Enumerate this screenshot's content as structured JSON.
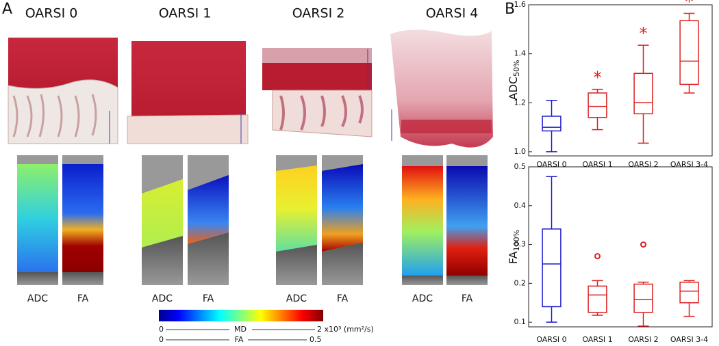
{
  "panel_a": {
    "letter": "A",
    "titles": [
      "OARSI 0",
      "OARSI 1",
      "OARSI 2",
      "OARSI 4"
    ],
    "map_labels": [
      [
        "ADC",
        "FA"
      ],
      [
        "ADC",
        "FA"
      ],
      [
        "ADC",
        "FA"
      ],
      [
        "ADC",
        "FA"
      ]
    ],
    "colorbar": {
      "md_min": "0",
      "md_name": "MD",
      "md_max": "2 x10³ (mm²/s)",
      "fa_min": "0",
      "fa_name": "FA",
      "fa_max": "0.5"
    }
  },
  "panel_b": {
    "letter": "B"
  },
  "chart_data": [
    {
      "type": "box",
      "ylabel": "ADC",
      "ylabel_sub": "50%",
      "categories": [
        "OARSI 0",
        "OARSI 1",
        "OARSI 2",
        "OARSI 3-4"
      ],
      "colors": [
        "#1c1ccc",
        "#dd2020",
        "#dd2020",
        "#dd2020"
      ],
      "min": [
        1.0,
        1.09,
        1.035,
        1.24
      ],
      "q1": [
        1.085,
        1.14,
        1.155,
        1.275
      ],
      "median": [
        1.1,
        1.185,
        1.2,
        1.37
      ],
      "q3": [
        1.145,
        1.24,
        1.32,
        1.535
      ],
      "max": [
        1.21,
        1.255,
        1.435,
        1.565
      ],
      "outliers": [
        null,
        null,
        null,
        null
      ],
      "significance": [
        null,
        "*",
        "*",
        "*"
      ],
      "ylim": [
        0.983,
        1.6
      ],
      "yticks": [
        {
          "value": 1,
          "label": "1.0"
        },
        1.2,
        1.4,
        1.6
      ]
    },
    {
      "type": "box",
      "ylabel": "FA",
      "ylabel_sub": "100%",
      "categories": [
        "OARSI 0",
        "OARSI 1",
        "OARSI 2",
        "OARSI 3-4"
      ],
      "colors": [
        "#1c1ccc",
        "#dd2020",
        "#dd2020",
        "#dd2020"
      ],
      "min": [
        0.1,
        0.118,
        0.09,
        0.115
      ],
      "q1": [
        0.14,
        0.125,
        0.125,
        0.15
      ],
      "median": [
        0.25,
        0.17,
        0.158,
        0.18
      ],
      "q3": [
        0.34,
        0.193,
        0.198,
        0.203
      ],
      "max": [
        0.475,
        0.207,
        0.203,
        0.207
      ],
      "outliers": [
        null,
        0.27,
        0.3,
        null
      ],
      "significance": [
        null,
        null,
        null,
        null
      ],
      "ylim": [
        0.088,
        0.5
      ],
      "yticks": [
        0.1,
        0.2,
        0.3,
        0.4,
        0.5
      ]
    }
  ]
}
